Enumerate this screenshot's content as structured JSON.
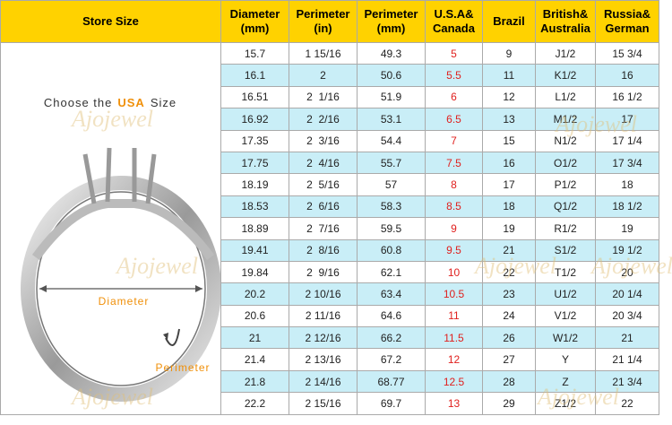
{
  "header": {
    "store_size": "Store Size",
    "columns": [
      [
        "Diameter",
        "(mm)"
      ],
      [
        "Perimeter",
        "(in)"
      ],
      [
        "Perimeter",
        "(mm)"
      ],
      [
        "U.S.A&",
        "Canada"
      ],
      [
        "Brazil"
      ],
      [
        "British&",
        "Australia"
      ],
      [
        "Russia&",
        "German"
      ]
    ]
  },
  "left_panel": {
    "caption_before": "Choose the",
    "caption_highlight": "USA",
    "caption_after": "Size",
    "diameter_label": "Diameter",
    "perimeter_label": "Perimeter",
    "watermark": "Ajojewel"
  },
  "table": {
    "rows": [
      [
        "15.7",
        "1 15/16",
        "49.3",
        "5",
        "9",
        "J1/2",
        "15 3/4"
      ],
      [
        "16.1",
        "2",
        "50.6",
        "5.5",
        "11",
        "K1/2",
        "16"
      ],
      [
        "16.51",
        "2  1/16",
        "51.9",
        "6",
        "12",
        "L1/2",
        "16 1/2"
      ],
      [
        "16.92",
        "2  2/16",
        "53.1",
        "6.5",
        "13",
        "M1/2",
        "17"
      ],
      [
        "17.35",
        "2  3/16",
        "54.4",
        "7",
        "15",
        "N1/2",
        "17 1/4"
      ],
      [
        "17.75",
        "2  4/16",
        "55.7",
        "7.5",
        "16",
        "O1/2",
        "17 3/4"
      ],
      [
        "18.19",
        "2  5/16",
        "57",
        "8",
        "17",
        "P1/2",
        "18"
      ],
      [
        "18.53",
        "2  6/16",
        "58.3",
        "8.5",
        "18",
        "Q1/2",
        "18 1/2"
      ],
      [
        "18.89",
        "2  7/16",
        "59.5",
        "9",
        "19",
        "R1/2",
        "19"
      ],
      [
        "19.41",
        "2  8/16",
        "60.8",
        "9.5",
        "21",
        "S1/2",
        "19 1/2"
      ],
      [
        "19.84",
        "2  9/16",
        "62.1",
        "10",
        "22",
        "T1/2",
        "20"
      ],
      [
        "20.2",
        "2 10/16",
        "63.4",
        "10.5",
        "23",
        "U1/2",
        "20 1/4"
      ],
      [
        "20.6",
        "2 11/16",
        "64.6",
        "11",
        "24",
        "V1/2",
        "20 3/4"
      ],
      [
        "21",
        "2 12/16",
        "66.2",
        "11.5",
        "26",
        "W1/2",
        "21"
      ],
      [
        "21.4",
        "2 13/16",
        "67.2",
        "12",
        "27",
        "Y",
        "21 1/4"
      ],
      [
        "21.8",
        "2 14/16",
        "68.77",
        "12.5",
        "28",
        "Z",
        "21 3/4"
      ],
      [
        "22.2",
        "2 15/16",
        "69.7",
        "13",
        "29",
        "Z1/2",
        "22"
      ]
    ]
  }
}
